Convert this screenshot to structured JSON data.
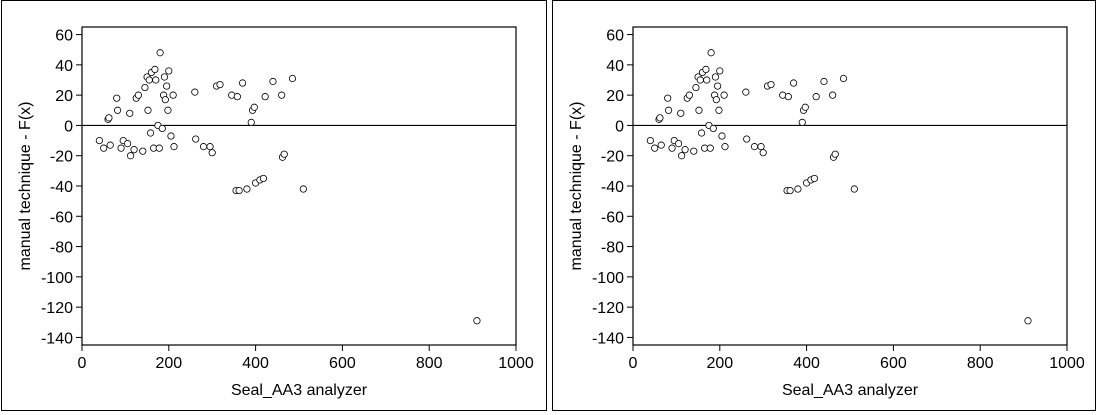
{
  "chart_data": [
    {
      "type": "scatter",
      "title": "",
      "xlabel": "Seal_AA3 analyzer",
      "ylabel": "manual technique - F(x)",
      "xlim": [
        0,
        1000
      ],
      "ylim": [
        -145,
        65
      ],
      "x_ticks": [
        "0",
        "200",
        "400",
        "600",
        "800",
        "1000"
      ],
      "y_ticks": [
        "60",
        "40",
        "20",
        "0",
        "-20",
        "-40",
        "-60",
        "-80",
        "-100",
        "-120",
        "-140"
      ],
      "reference_line_y": 0,
      "grid": false,
      "points": [
        [
          40,
          -10
        ],
        [
          50,
          -15
        ],
        [
          60,
          4
        ],
        [
          62,
          5
        ],
        [
          65,
          -13
        ],
        [
          80,
          18
        ],
        [
          82,
          10
        ],
        [
          90,
          -15
        ],
        [
          95,
          -10
        ],
        [
          105,
          -12
        ],
        [
          110,
          8
        ],
        [
          112,
          -20
        ],
        [
          120,
          -16
        ],
        [
          125,
          18
        ],
        [
          130,
          20
        ],
        [
          140,
          -17
        ],
        [
          145,
          25
        ],
        [
          150,
          32
        ],
        [
          152,
          10
        ],
        [
          155,
          30
        ],
        [
          158,
          -5
        ],
        [
          160,
          35
        ],
        [
          165,
          -15
        ],
        [
          168,
          37
        ],
        [
          170,
          30
        ],
        [
          175,
          0
        ],
        [
          178,
          -15
        ],
        [
          180,
          48
        ],
        [
          185,
          -2
        ],
        [
          188,
          20
        ],
        [
          190,
          32
        ],
        [
          192,
          17
        ],
        [
          195,
          26
        ],
        [
          198,
          10
        ],
        [
          200,
          36
        ],
        [
          205,
          -7
        ],
        [
          210,
          20
        ],
        [
          212,
          -14
        ],
        [
          260,
          22
        ],
        [
          262,
          -9
        ],
        [
          280,
          -14
        ],
        [
          295,
          -14
        ],
        [
          300,
          -18
        ],
        [
          310,
          26
        ],
        [
          318,
          27
        ],
        [
          345,
          20
        ],
        [
          355,
          -43
        ],
        [
          358,
          19
        ],
        [
          362,
          -43
        ],
        [
          370,
          28
        ],
        [
          380,
          -42
        ],
        [
          390,
          2
        ],
        [
          393,
          10
        ],
        [
          397,
          12
        ],
        [
          400,
          -38
        ],
        [
          410,
          -36
        ],
        [
          418,
          -35
        ],
        [
          422,
          19
        ],
        [
          440,
          29
        ],
        [
          460,
          20
        ],
        [
          462,
          -21
        ],
        [
          466,
          -19
        ],
        [
          485,
          31
        ],
        [
          510,
          -42
        ],
        [
          910,
          -129
        ]
      ]
    },
    {
      "type": "scatter",
      "title": "",
      "xlabel": "Seal_AA3 analyzer",
      "ylabel": "manual technique - F(x)",
      "xlim": [
        0,
        1000
      ],
      "ylim": [
        -145,
        65
      ],
      "x_ticks": [
        "0",
        "200",
        "400",
        "600",
        "800",
        "1000"
      ],
      "y_ticks": [
        "60",
        "40",
        "20",
        "0",
        "-20",
        "-40",
        "-60",
        "-80",
        "-100",
        "-120",
        "-140"
      ],
      "reference_line_y": 0,
      "grid": false,
      "points": [
        [
          40,
          -10
        ],
        [
          50,
          -15
        ],
        [
          60,
          4
        ],
        [
          62,
          5
        ],
        [
          65,
          -13
        ],
        [
          80,
          18
        ],
        [
          82,
          10
        ],
        [
          90,
          -15
        ],
        [
          95,
          -10
        ],
        [
          105,
          -12
        ],
        [
          110,
          8
        ],
        [
          112,
          -20
        ],
        [
          120,
          -16
        ],
        [
          125,
          18
        ],
        [
          130,
          20
        ],
        [
          140,
          -17
        ],
        [
          145,
          25
        ],
        [
          150,
          32
        ],
        [
          152,
          10
        ],
        [
          155,
          30
        ],
        [
          158,
          -5
        ],
        [
          160,
          35
        ],
        [
          165,
          -15
        ],
        [
          168,
          37
        ],
        [
          170,
          30
        ],
        [
          175,
          0
        ],
        [
          178,
          -15
        ],
        [
          180,
          48
        ],
        [
          185,
          -2
        ],
        [
          188,
          20
        ],
        [
          190,
          32
        ],
        [
          192,
          17
        ],
        [
          195,
          26
        ],
        [
          198,
          10
        ],
        [
          200,
          36
        ],
        [
          205,
          -7
        ],
        [
          210,
          20
        ],
        [
          212,
          -14
        ],
        [
          260,
          22
        ],
        [
          262,
          -9
        ],
        [
          280,
          -14
        ],
        [
          295,
          -14
        ],
        [
          300,
          -18
        ],
        [
          310,
          26
        ],
        [
          318,
          27
        ],
        [
          345,
          20
        ],
        [
          355,
          -43
        ],
        [
          358,
          19
        ],
        [
          362,
          -43
        ],
        [
          370,
          28
        ],
        [
          380,
          -42
        ],
        [
          390,
          2
        ],
        [
          393,
          10
        ],
        [
          397,
          12
        ],
        [
          400,
          -38
        ],
        [
          410,
          -36
        ],
        [
          418,
          -35
        ],
        [
          422,
          19
        ],
        [
          440,
          29
        ],
        [
          460,
          20
        ],
        [
          462,
          -21
        ],
        [
          466,
          -19
        ],
        [
          485,
          31
        ],
        [
          510,
          -42
        ],
        [
          910,
          -129
        ]
      ]
    }
  ]
}
